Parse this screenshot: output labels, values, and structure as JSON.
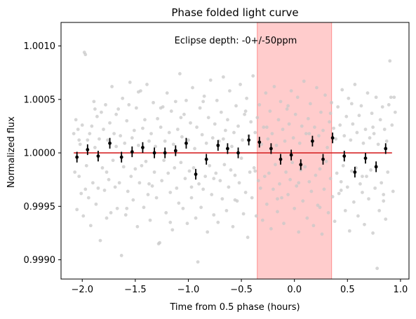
{
  "chart_data": {
    "type": "scatter",
    "title": "Phase folded light curve",
    "xlabel": "Time from 0.5 phase (hours)",
    "ylabel": "Normalized flux",
    "xlim": [
      -2.2,
      1.08
    ],
    "ylim": [
      0.99882,
      1.00122
    ],
    "xticks": [
      -2.0,
      -1.5,
      -1.0,
      -0.5,
      0.0,
      0.5,
      1.0
    ],
    "xtick_labels": [
      "−2.0",
      "−1.5",
      "−1.0",
      "−0.5",
      "0.0",
      "0.5",
      "1.0"
    ],
    "yticks": [
      0.999,
      0.9995,
      1.0,
      1.0005,
      1.001
    ],
    "ytick_labels": [
      "0.9990",
      "0.9995",
      "1.0000",
      "1.0005",
      "1.0010"
    ],
    "annotation": "Eclipse depth: -0+/-50ppm",
    "eclipse_window": [
      -0.35,
      0.35
    ],
    "model_line": {
      "x": [
        -2.08,
        0.92
      ],
      "y": 1.0
    },
    "colors": {
      "raw": "#c8c8c8",
      "binned": "#000000",
      "model": "#d62728",
      "eclipse": "#ff9a9a"
    },
    "binned": [
      {
        "x": -2.05,
        "y": 0.99996,
        "err": 0.0001
      },
      {
        "x": -1.95,
        "y": 1.00003,
        "err": 0.0001
      },
      {
        "x": -1.85,
        "y": 0.99997,
        "err": 0.0001
      },
      {
        "x": -1.74,
        "y": 1.00009,
        "err": 0.0001
      },
      {
        "x": -1.63,
        "y": 0.99996,
        "err": 0.0001
      },
      {
        "x": -1.53,
        "y": 1.00001,
        "err": 0.0001
      },
      {
        "x": -1.43,
        "y": 1.00005,
        "err": 0.0001
      },
      {
        "x": -1.32,
        "y": 1.0,
        "err": 0.0001
      },
      {
        "x": -1.22,
        "y": 1.0,
        "err": 0.0001
      },
      {
        "x": -1.12,
        "y": 1.00002,
        "err": 0.0001
      },
      {
        "x": -1.02,
        "y": 1.00009,
        "err": 0.0001
      },
      {
        "x": -0.93,
        "y": 0.9998,
        "err": 0.0001
      },
      {
        "x": -0.83,
        "y": 0.99994,
        "err": 0.0001
      },
      {
        "x": -0.72,
        "y": 1.00007,
        "err": 0.0001
      },
      {
        "x": -0.63,
        "y": 1.00004,
        "err": 0.0001
      },
      {
        "x": -0.53,
        "y": 1.0,
        "err": 0.0001
      },
      {
        "x": -0.43,
        "y": 1.00012,
        "err": 0.0001
      },
      {
        "x": -0.33,
        "y": 1.0001,
        "err": 0.0001
      },
      {
        "x": -0.22,
        "y": 1.00004,
        "err": 0.0001
      },
      {
        "x": -0.13,
        "y": 0.99994,
        "err": 0.0001
      },
      {
        "x": -0.03,
        "y": 0.99998,
        "err": 0.0001
      },
      {
        "x": 0.06,
        "y": 0.99989,
        "err": 0.0001
      },
      {
        "x": 0.17,
        "y": 1.00011,
        "err": 0.0001
      },
      {
        "x": 0.27,
        "y": 0.99994,
        "err": 0.0001
      },
      {
        "x": 0.36,
        "y": 1.00014,
        "err": 0.0001
      },
      {
        "x": 0.47,
        "y": 0.99997,
        "err": 0.0001
      },
      {
        "x": 0.57,
        "y": 0.99982,
        "err": 0.0001
      },
      {
        "x": 0.67,
        "y": 0.99995,
        "err": 0.0001
      },
      {
        "x": 0.77,
        "y": 0.99987,
        "err": 0.0001
      },
      {
        "x": 0.86,
        "y": 1.00004,
        "err": 0.0001
      }
    ],
    "raw": [
      [
        -2.08,
        1.00018
      ],
      [
        -2.07,
        0.99982
      ],
      [
        -2.06,
        1.00031
      ],
      [
        -2.05,
        0.99947
      ],
      [
        -2.04,
        1.00022
      ],
      [
        -2.03,
        0.99978
      ],
      [
        -2.02,
        1.00008
      ],
      [
        -2.01,
        0.99962
      ],
      [
        -2.0,
        1.00026
      ],
      [
        -1.99,
        0.99941
      ],
      [
        -1.98,
        1.00094
      ],
      [
        -1.97,
        1.00092
      ],
      [
        -1.96,
        0.99988
      ],
      [
        -1.95,
        1.00012
      ],
      [
        -1.94,
        0.99958
      ],
      [
        -1.93,
        1.00018
      ],
      [
        -1.92,
        0.99932
      ],
      [
        -1.91,
        1.00025
      ],
      [
        -1.9,
        0.99972
      ],
      [
        -1.89,
        1.00048
      ],
      [
        -1.88,
        1.00005
      ],
      [
        -1.87,
        0.99952
      ],
      [
        -1.86,
        1.00034
      ],
      [
        -1.85,
        0.99967
      ],
      [
        -1.84,
        1.00013
      ],
      [
        -1.83,
        0.99918
      ],
      [
        -1.82,
        1.00038
      ],
      [
        -1.81,
        0.99986
      ],
      [
        -1.8,
        1.00022
      ],
      [
        -1.79,
        0.99965
      ],
      [
        -1.78,
        1.00045
      ],
      [
        -1.77,
        0.99939
      ],
      [
        -1.76,
        1.00012
      ],
      [
        -1.75,
        0.99975
      ],
      [
        -1.74,
        1.00028
      ],
      [
        -1.73,
        0.99944
      ],
      [
        -1.72,
        1.00062
      ],
      [
        -1.71,
        0.99993
      ],
      [
        -1.7,
        1.00018
      ],
      [
        -1.69,
        0.99968
      ],
      [
        -1.68,
        1.00006
      ],
      [
        -1.67,
        0.99948
      ],
      [
        -1.66,
        1.00041
      ],
      [
        -1.65,
        0.99972
      ],
      [
        -1.64,
        1.00016
      ],
      [
        -1.63,
        0.99904
      ],
      [
        -1.62,
        1.00051
      ],
      [
        -1.61,
        0.99987
      ],
      [
        -1.6,
        1.00009
      ],
      [
        -1.59,
        0.99942
      ],
      [
        -1.58,
        1.0003
      ],
      [
        -1.57,
        0.99964
      ],
      [
        -1.56,
        1.00045
      ],
      [
        -1.55,
        1.00066
      ],
      [
        -1.54,
        0.99978
      ],
      [
        -1.53,
        1.00014
      ],
      [
        -1.52,
        0.99956
      ],
      [
        -1.51,
        1.00021
      ],
      [
        -1.5,
        0.99985
      ],
      [
        -1.49,
        1.00042
      ],
      [
        -1.48,
        0.99931
      ],
      [
        -1.47,
        1.00007
      ],
      [
        -1.46,
        0.99972
      ],
      [
        -1.45,
        1.00058
      ],
      [
        -1.44,
        0.99988
      ],
      [
        -1.43,
        1.00023
      ],
      [
        -1.42,
        0.99949
      ],
      [
        -1.41,
        1.00031
      ],
      [
        -1.4,
        0.99992
      ],
      [
        -1.39,
        1.00064
      ],
      [
        -1.38,
        0.99961
      ],
      [
        -1.37,
        1.00011
      ],
      [
        -1.36,
        0.99937
      ],
      [
        -1.35,
        1.00018
      ],
      [
        -1.34,
        0.99969
      ],
      [
        -1.33,
        1.00047
      ],
      [
        -1.32,
        0.99982
      ],
      [
        -1.31,
        1.00006
      ],
      [
        -1.3,
        0.99958
      ],
      [
        -1.29,
        1.00032
      ],
      [
        -1.28,
        0.99915
      ],
      [
        -1.27,
        0.99916
      ],
      [
        -1.26,
        1.00024
      ],
      [
        -1.25,
        0.99974
      ],
      [
        -1.24,
        1.00043
      ],
      [
        -1.23,
        0.99993
      ],
      [
        -1.22,
        1.00011
      ],
      [
        -1.21,
        0.99944
      ],
      [
        -1.2,
        1.00056
      ],
      [
        -1.19,
        0.99981
      ],
      [
        -1.18,
        1.00019
      ],
      [
        -1.17,
        0.99963
      ],
      [
        -1.16,
        1.00039
      ],
      [
        -1.15,
        0.99928
      ],
      [
        -1.14,
        1.00008
      ],
      [
        -1.13,
        0.99986
      ],
      [
        -1.12,
        1.00048
      ],
      [
        -1.11,
        0.99967
      ],
      [
        -1.1,
        1.00022
      ],
      [
        -1.09,
        0.99953
      ],
      [
        -1.08,
        1.00074
      ],
      [
        -1.07,
        0.99991
      ],
      [
        -1.06,
        1.00015
      ],
      [
        -1.05,
        0.99948
      ],
      [
        -1.04,
        1.00036
      ],
      [
        -1.03,
        0.99976
      ],
      [
        -1.02,
        1.00049
      ],
      [
        -1.01,
        0.99934
      ],
      [
        -1.0,
        1.00012
      ],
      [
        -0.99,
        0.99983
      ],
      [
        -0.98,
        1.00028
      ],
      [
        -0.97,
        0.99958
      ],
      [
        -0.96,
        1.00061
      ],
      [
        -0.95,
        0.99986
      ],
      [
        -0.94,
        1.00004
      ],
      [
        -0.93,
        0.99939
      ],
      [
        -0.92,
        1.00024
      ],
      [
        -0.91,
        0.99898
      ],
      [
        -0.9,
        0.99971
      ],
      [
        -0.89,
        1.00042
      ],
      [
        -0.88,
        0.99949
      ],
      [
        -0.87,
        1.00017
      ],
      [
        -0.86,
        0.99966
      ],
      [
        -0.85,
        1.00053
      ],
      [
        -0.84,
        0.99978
      ],
      [
        -0.83,
        1.00009
      ],
      [
        -0.82,
        0.99926
      ],
      [
        -0.81,
        1.00033
      ],
      [
        -0.8,
        0.99988
      ],
      [
        -0.79,
        1.00068
      ],
      [
        -0.78,
        0.99961
      ],
      [
        -0.77,
        1.00014
      ],
      [
        -0.76,
        0.99942
      ],
      [
        -0.75,
        1.00027
      ],
      [
        -0.74,
        0.99981
      ],
      [
        -0.73,
        1.00049
      ],
      [
        -0.72,
        0.99935
      ],
      [
        -0.71,
        1.00011
      ],
      [
        -0.7,
        0.99974
      ],
      [
        -0.69,
        1.00038
      ],
      [
        -0.68,
        0.99957
      ],
      [
        -0.67,
        1.00071
      ],
      [
        -0.66,
        0.99989
      ],
      [
        -0.65,
        1.00021
      ],
      [
        -0.64,
        0.99946
      ],
      [
        -0.63,
        1.00031
      ],
      [
        -0.62,
        0.99968
      ],
      [
        -0.61,
        1.00058
      ],
      [
        -0.6,
        0.99984
      ],
      [
        -0.59,
        1.00006
      ],
      [
        -0.58,
        0.99931
      ],
      [
        -0.57,
        1.00019
      ],
      [
        -0.56,
        0.99979
      ],
      [
        -0.55,
        1.00044
      ],
      [
        -0.54,
        0.99955
      ],
      [
        -0.53,
        1.00025
      ],
      [
        -0.52,
        0.99972
      ],
      [
        -0.51,
        1.00064
      ],
      [
        -0.5,
        0.99995
      ],
      [
        -0.49,
        1.00012
      ],
      [
        -0.48,
        0.99943
      ],
      [
        -0.47,
        1.00036
      ],
      [
        -0.46,
        0.99963
      ],
      [
        -0.45,
        1.00051
      ],
      [
        -0.44,
        0.99921
      ],
      [
        -0.43,
        1.00016
      ],
      [
        -0.42,
        0.99982
      ],
      [
        -0.41,
        1.00029
      ],
      [
        -0.4,
        0.99958
      ],
      [
        -0.39,
        1.00072
      ],
      [
        -0.38,
        0.99986
      ],
      [
        -0.37,
        1.00019
      ],
      [
        -0.36,
        0.99941
      ],
      [
        -0.35,
        1.00033
      ],
      [
        -0.34,
        0.99974
      ],
      [
        -0.33,
        1.00045
      ],
      [
        -0.32,
        0.99967
      ],
      [
        -0.31,
        1.00008
      ],
      [
        -0.3,
        0.99937
      ],
      [
        -0.29,
        1.00024
      ],
      [
        -0.28,
        0.99978
      ],
      [
        -0.27,
        1.00056
      ],
      [
        -0.26,
        0.99952
      ],
      [
        -0.25,
        1.00013
      ],
      [
        -0.24,
        0.99981
      ],
      [
        -0.23,
        1.00039
      ],
      [
        -0.22,
        0.99929
      ],
      [
        -0.21,
        1.00018
      ],
      [
        -0.2,
        0.99966
      ],
      [
        -0.19,
        1.00062
      ],
      [
        -0.18,
        0.99989
      ],
      [
        -0.17,
        1.00007
      ],
      [
        -0.16,
        0.99945
      ],
      [
        -0.15,
        1.00031
      ],
      [
        -0.14,
        0.99971
      ],
      [
        -0.13,
        1.00048
      ],
      [
        -0.12,
        0.99958
      ],
      [
        -0.11,
        1.00022
      ],
      [
        -0.1,
        0.99934
      ],
      [
        -0.09,
        1.00011
      ],
      [
        -0.08,
        0.99982
      ],
      [
        -0.07,
        1.00041
      ],
      [
        -0.06,
        0.99961
      ],
      [
        -0.05,
        1.00027
      ],
      [
        -0.04,
        0.99975
      ],
      [
        -0.03,
        1.00058
      ],
      [
        -0.02,
        0.99991
      ],
      [
        -0.01,
        1.00014
      ],
      [
        0.0,
        0.99948
      ],
      [
        0.01,
        1.00036
      ],
      [
        0.02,
        0.99969
      ],
      [
        0.03,
        1.00052
      ],
      [
        0.04,
        0.99926
      ],
      [
        0.05,
        1.00009
      ],
      [
        0.06,
        0.99984
      ],
      [
        0.07,
        1.00025
      ],
      [
        0.08,
        0.99955
      ],
      [
        0.09,
        1.00067
      ],
      [
        0.1,
        0.99987
      ],
      [
        0.11,
        1.00018
      ],
      [
        0.12,
        0.99939
      ],
      [
        0.13,
        1.00032
      ],
      [
        0.14,
        0.99973
      ],
      [
        0.15,
        1.00046
      ],
      [
        0.16,
        0.99964
      ],
      [
        0.17,
        1.00011
      ],
      [
        0.18,
        0.99932
      ],
      [
        0.19,
        1.00024
      ],
      [
        0.2,
        0.99979
      ],
      [
        0.21,
        1.00061
      ],
      [
        0.22,
        0.99951
      ],
      [
        0.23,
        1.00016
      ],
      [
        0.24,
        0.99985
      ],
      [
        0.25,
        1.00038
      ],
      [
        0.26,
        0.99924
      ],
      [
        0.27,
        1.00021
      ],
      [
        0.28,
        0.99966
      ],
      [
        0.29,
        1.00054
      ],
      [
        0.3,
        0.99992
      ],
      [
        0.31,
        1.00005
      ],
      [
        0.32,
        0.99944
      ],
      [
        0.33,
        1.00029
      ],
      [
        0.34,
        0.99976
      ],
      [
        0.35,
        1.00047
      ],
      [
        0.36,
        0.99959
      ],
      [
        0.37,
        1.00023
      ],
      [
        0.38,
        0.99936
      ],
      [
        0.39,
        1.00013
      ],
      [
        0.4,
        0.99981
      ],
      [
        0.41,
        1.00043
      ],
      [
        0.42,
        0.99962
      ],
      [
        0.43,
        1.00026
      ],
      [
        0.44,
        0.99973
      ],
      [
        0.45,
        1.00059
      ],
      [
        0.46,
        0.99988
      ],
      [
        0.47,
        1.00016
      ],
      [
        0.48,
        0.99946
      ],
      [
        0.49,
        1.00034
      ],
      [
        0.5,
        0.99968
      ],
      [
        0.51,
        1.00051
      ],
      [
        0.52,
        0.99927
      ],
      [
        0.53,
        1.00012
      ],
      [
        0.54,
        0.99983
      ],
      [
        0.55,
        1.00027
      ],
      [
        0.56,
        0.99954
      ],
      [
        0.57,
        1.00064
      ],
      [
        0.58,
        0.99986
      ],
      [
        0.59,
        1.00019
      ],
      [
        0.6,
        0.99941
      ],
      [
        0.61,
        1.00035
      ],
      [
        0.62,
        0.99971
      ],
      [
        0.63,
        1.00044
      ],
      [
        0.64,
        0.99963
      ],
      [
        0.65,
        1.00009
      ],
      [
        0.66,
        0.99933
      ],
      [
        0.67,
        1.00022
      ],
      [
        0.68,
        0.99978
      ],
      [
        0.69,
        1.00056
      ],
      [
        0.7,
        0.99957
      ],
      [
        0.71,
        1.00014
      ],
      [
        0.72,
        0.99984
      ],
      [
        0.73,
        1.00037
      ],
      [
        0.74,
        0.99925
      ],
      [
        0.75,
        1.00018
      ],
      [
        0.76,
        0.99967
      ],
      [
        0.77,
        1.00052
      ],
      [
        0.78,
        0.99892
      ],
      [
        0.79,
        1.00008
      ],
      [
        0.8,
        0.99946
      ],
      [
        0.81,
        1.00031
      ],
      [
        0.82,
        0.99972
      ],
      [
        0.83,
        1.00043
      ],
      [
        0.84,
        0.99961
      ],
      [
        0.85,
        1.00022
      ],
      [
        0.86,
        0.99938
      ],
      [
        0.87,
        1.00011
      ],
      [
        0.88,
        0.99982
      ],
      [
        0.89,
        1.00045
      ],
      [
        0.9,
        1.00086
      ],
      [
        0.91,
        1.00052
      ],
      [
        0.92,
        1.00026
      ],
      [
        0.93,
        0.99964
      ],
      [
        0.94,
        1.00052
      ],
      [
        0.95,
        1.00038
      ],
      [
        -2.03,
        1.00012
      ],
      [
        -1.97,
        0.99966
      ],
      [
        -1.88,
        1.00041
      ],
      [
        -1.77,
        0.99982
      ],
      [
        -1.68,
        1.00036
      ],
      [
        -1.58,
        0.99948
      ],
      [
        -1.47,
        1.00057
      ],
      [
        -1.37,
        0.99971
      ],
      [
        -1.26,
        1.00042
      ],
      [
        -1.17,
        0.99935
      ],
      [
        -1.07,
        1.00033
      ],
      [
        -0.97,
        0.99968
      ],
      [
        -0.86,
        1.00048
      ],
      [
        -0.76,
        0.99976
      ],
      [
        -0.67,
        1.00013
      ],
      [
        -0.56,
        0.99956
      ],
      [
        -0.46,
        1.00039
      ],
      [
        -0.37,
        0.99983
      ],
      [
        -0.26,
        1.00024
      ],
      [
        -0.16,
        0.99957
      ],
      [
        -0.06,
        1.00044
      ],
      [
        0.04,
        0.99972
      ],
      [
        0.14,
        1.00018
      ],
      [
        0.24,
        0.99949
      ],
      [
        0.34,
        1.00037
      ],
      [
        0.44,
        0.99965
      ],
      [
        0.54,
        1.00046
      ],
      [
        0.64,
        0.99978
      ],
      [
        0.74,
        1.00024
      ],
      [
        0.84,
        0.99955
      ]
    ]
  }
}
